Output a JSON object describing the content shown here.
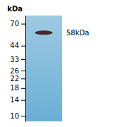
{
  "chart_data": {
    "type": "gel",
    "y_label": "kDa",
    "log": "y",
    "ylim": [
      8.912509381337456,
      83.17637711026708
    ],
    "yticks": [
      10,
      14,
      18,
      22,
      26,
      33,
      44,
      70
    ],
    "values": [
      57.94286964
    ],
    "value_labels": [
      "58kDa"
    ],
    "data_labels": true,
    "color": "#3a1a1a"
  }
}
